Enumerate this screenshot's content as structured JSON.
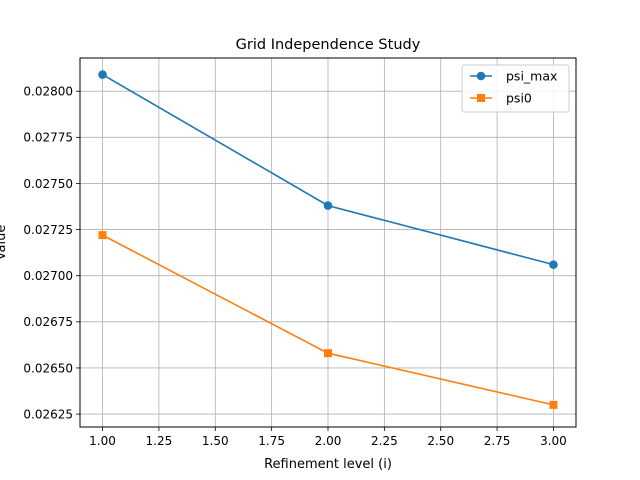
{
  "chart_data": {
    "type": "line",
    "title": "Grid Independence Study",
    "xlabel": "Refinement level (i)",
    "ylabel": "Value",
    "xlim": [
      0.9,
      3.1
    ],
    "ylim": [
      0.02618,
      0.02818
    ],
    "xticks": [
      1.0,
      1.25,
      1.5,
      1.75,
      2.0,
      2.25,
      2.5,
      2.75,
      3.0
    ],
    "xtick_labels": [
      "1.00",
      "1.25",
      "1.50",
      "1.75",
      "2.00",
      "2.25",
      "2.50",
      "2.75",
      "3.00"
    ],
    "yticks": [
      0.02625,
      0.0265,
      0.02675,
      0.027,
      0.02725,
      0.0275,
      0.02775,
      0.028
    ],
    "ytick_labels": [
      "0.02625",
      "0.02650",
      "0.02675",
      "0.02700",
      "0.02725",
      "0.02750",
      "0.02775",
      "0.02800"
    ],
    "grid": true,
    "legend_position": "top-right",
    "series": [
      {
        "name": "psi_max",
        "color": "#1f77b4",
        "marker": "circle",
        "x": [
          1,
          2,
          3
        ],
        "y": [
          0.02809,
          0.02738,
          0.02706
        ]
      },
      {
        "name": "psi0",
        "color": "#ff7f0e",
        "marker": "square",
        "x": [
          1,
          2,
          3
        ],
        "y": [
          0.02722,
          0.02658,
          0.0263
        ]
      }
    ]
  }
}
